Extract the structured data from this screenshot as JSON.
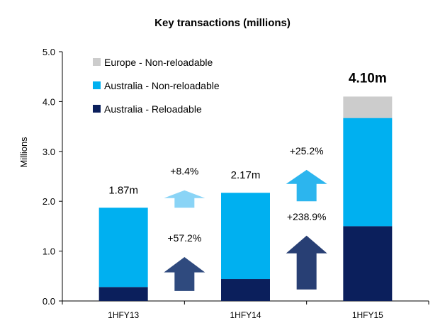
{
  "chart_data": {
    "type": "bar",
    "stacked": true,
    "title": "Key transactions (millions)",
    "xlabel": "",
    "ylabel": "Millions",
    "ylim": [
      0,
      5.0
    ],
    "yticks": [
      "0.0",
      "1.0",
      "2.0",
      "3.0",
      "4.0",
      "5.0"
    ],
    "categories": [
      "1HFY13",
      "1HFY14",
      "1HFY15"
    ],
    "series": [
      {
        "name": "Australia - Reloadable",
        "color": "#0b1f5c",
        "values": [
          0.28,
          0.44,
          1.5
        ]
      },
      {
        "name": "Australia - Non-reloadable",
        "color": "#00b0f0",
        "values": [
          1.59,
          1.73,
          2.17
        ]
      },
      {
        "name": "Europe - Non-reloadable",
        "color": "#cccccc",
        "values": [
          0,
          0,
          0.43
        ]
      }
    ],
    "legend_order": [
      2,
      1,
      0
    ],
    "legend_position": "top-left",
    "total_labels": [
      "1.87m",
      "2.17m",
      "4.10m"
    ],
    "growth_arrows": [
      {
        "between": [
          0,
          1
        ],
        "label": "+8.4%",
        "series": "Australia - Non-reloadable",
        "color": "#8ad4f6",
        "base": 1.87,
        "tip": 2.22
      },
      {
        "between": [
          0,
          1
        ],
        "label": "+57.2%",
        "series": "Australia - Reloadable",
        "color": "#2f4a7e",
        "base": 0.2,
        "tip": 0.88
      },
      {
        "between": [
          1,
          2
        ],
        "label": "+25.2%",
        "series": "Australia - Non-reloadable",
        "color": "#2cb5ee",
        "base": 2.0,
        "tip": 2.63
      },
      {
        "between": [
          1,
          2
        ],
        "label": "+238.9%",
        "series": "Australia - Reloadable",
        "color": "#283f74",
        "base": 0.23,
        "tip": 1.31
      }
    ]
  }
}
